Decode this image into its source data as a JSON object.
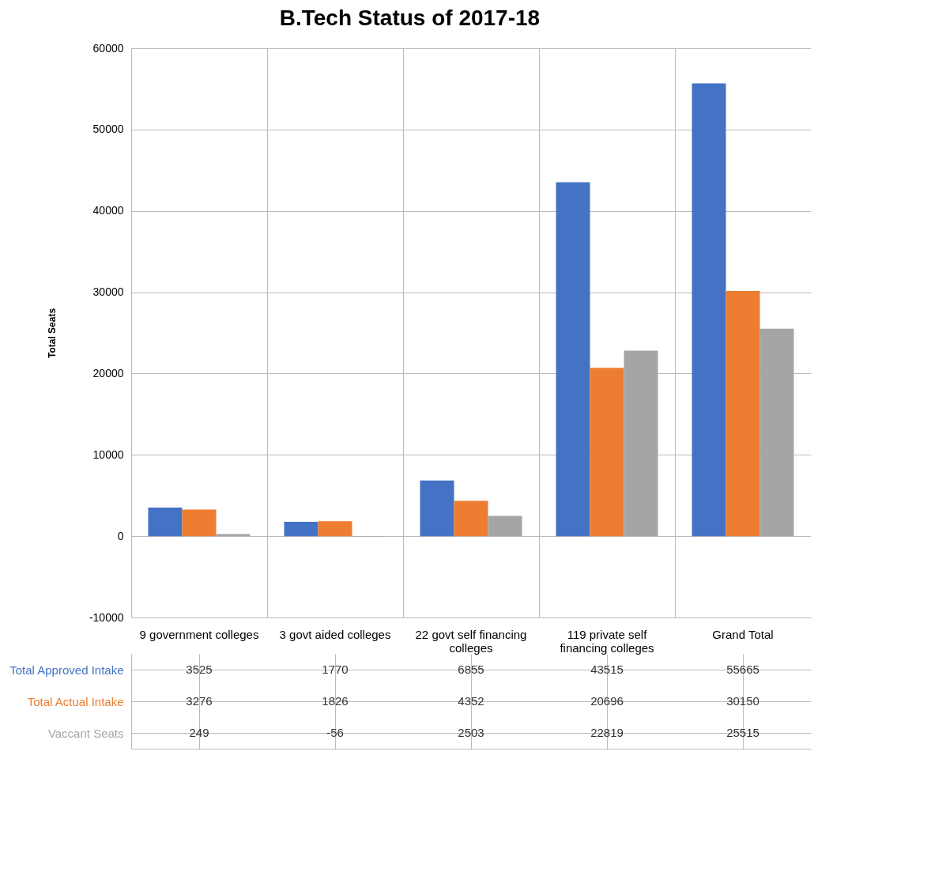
{
  "chart_data": {
    "type": "bar",
    "title": "B.Tech Status of 2017-18",
    "ylabel": "Total Seats",
    "categories": [
      "9 government colleges",
      "3 govt aided colleges",
      "22 govt self financing colleges",
      "119  private self financing colleges",
      "Grand Total"
    ],
    "series": [
      {
        "name": "Total Approved Intake",
        "color": "#4472c4",
        "values": [
          3525,
          1770,
          6855,
          43515,
          55665
        ]
      },
      {
        "name": "Total Actual Intake",
        "color": "#ed7d31",
        "values": [
          3276,
          1826,
          4352,
          20696,
          30150
        ]
      },
      {
        "name": "Vaccant Seats",
        "color": "#a5a5a5",
        "values": [
          249,
          -56,
          2503,
          22819,
          25515
        ]
      }
    ],
    "ylim": [
      -10000,
      60000
    ],
    "yticks": [
      -10000,
      0,
      10000,
      20000,
      30000,
      40000,
      50000,
      60000
    ],
    "grid": "y",
    "data_labels": true,
    "legend": "bottom"
  }
}
